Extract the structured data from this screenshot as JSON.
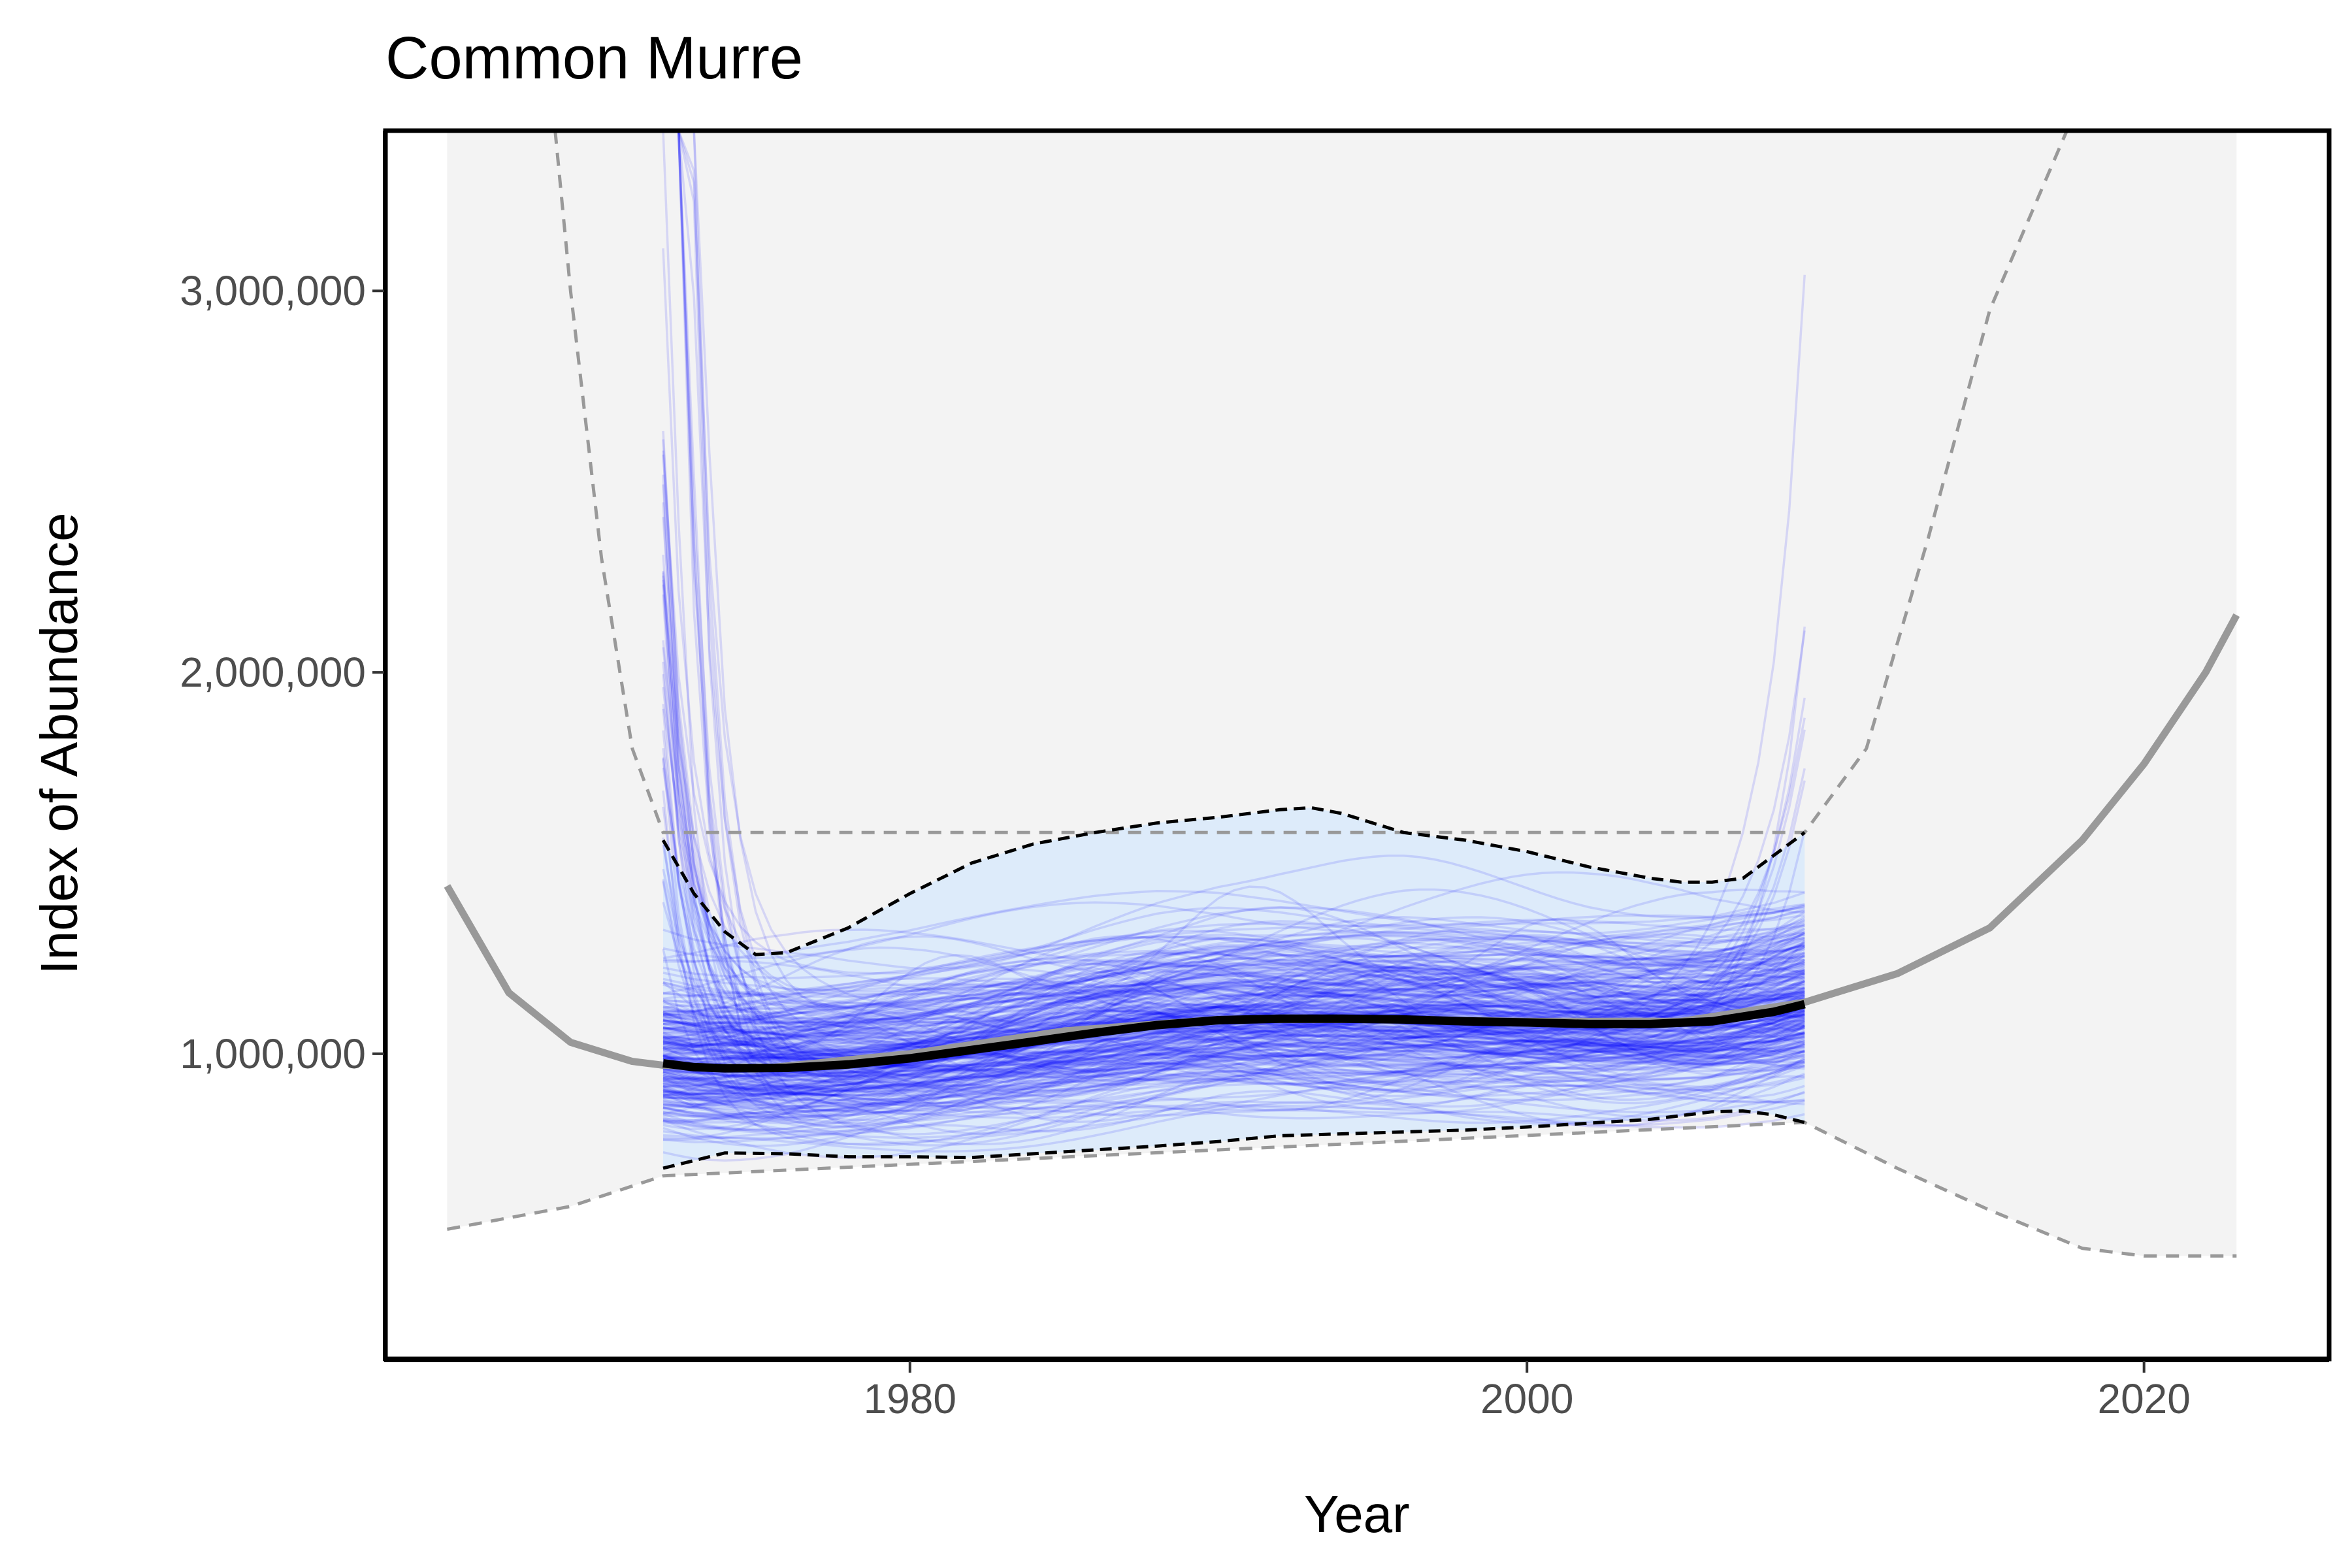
{
  "chart_data": {
    "type": "line",
    "title": "Common Murre",
    "xlabel": "Year",
    "ylabel": "Index of Abundance",
    "xlim": [
      1963,
      2026
    ],
    "ylim": [
      200000,
      3420000
    ],
    "x_ticks": [
      1980,
      2000,
      2020
    ],
    "x_tick_labels": [
      "1980",
      "2000",
      "2020"
    ],
    "y_ticks": [
      1000000,
      2000000,
      3000000
    ],
    "y_tick_labels": [
      "1,000,000",
      "2,000,000",
      "3,000,000"
    ],
    "grid": false,
    "legend": "none",
    "extrapolated_range": [
      1965,
      2023
    ],
    "observed_range": [
      1972,
      2009
    ],
    "series": [
      {
        "role": "extrapolated-trend",
        "x": [
          1965,
          1967,
          1969,
          1971,
          1972,
          1975,
          1980,
          1985,
          1990,
          1995,
          2000,
          2005,
          2009,
          2012,
          2015,
          2018,
          2020,
          2022,
          2023
        ],
        "values": [
          1440000,
          1160000,
          1030000,
          980000,
          970000,
          960000,
          1000000,
          1060000,
          1090000,
          1090000,
          1085000,
          1085000,
          1135000,
          1210000,
          1330000,
          1560000,
          1760000,
          2000000,
          2150000
        ]
      },
      {
        "role": "extrapolated-upper-bound",
        "x": [
          1968.5,
          1969,
          1970,
          1971,
          1972,
          2009,
          2011,
          2013,
          2015,
          2017.5
        ],
        "values": [
          3420000,
          3000000,
          2300000,
          1800000,
          1580000,
          1580000,
          1800000,
          2350000,
          2950000,
          3420000
        ]
      },
      {
        "role": "extrapolated-lower-bound",
        "x": [
          1965,
          1969,
          1972,
          2009,
          2012,
          2015,
          2018,
          2020,
          2023
        ],
        "values": [
          540000,
          600000,
          680000,
          820000,
          700000,
          590000,
          490000,
          470000,
          470000
        ]
      },
      {
        "role": "posterior-mean",
        "x": [
          1972,
          1973,
          1974,
          1976,
          1978,
          1980,
          1982,
          1984,
          1986,
          1988,
          1990,
          1992,
          1994,
          1996,
          1998,
          2000,
          2002,
          2004,
          2006,
          2008,
          2009
        ],
        "values": [
          975000,
          965000,
          962000,
          963000,
          972000,
          988000,
          1010000,
          1032000,
          1055000,
          1075000,
          1088000,
          1092000,
          1092000,
          1090000,
          1085000,
          1082000,
          1078000,
          1078000,
          1085000,
          1110000,
          1130000
        ]
      },
      {
        "role": "upper-credible-interval",
        "x": [
          1972,
          1973,
          1974,
          1975,
          1976,
          1978,
          1980,
          1982,
          1984,
          1986,
          1988,
          1990,
          1992,
          1993,
          1994,
          1996,
          1998,
          2000,
          2002,
          2004,
          2005,
          2006,
          2007,
          2008,
          2009
        ],
        "values": [
          1560000,
          1420000,
          1320000,
          1260000,
          1265000,
          1330000,
          1420000,
          1500000,
          1550000,
          1580000,
          1605000,
          1620000,
          1640000,
          1645000,
          1630000,
          1580000,
          1560000,
          1530000,
          1490000,
          1460000,
          1450000,
          1450000,
          1460000,
          1520000,
          1580000
        ]
      },
      {
        "role": "lower-credible-interval",
        "x": [
          1972,
          1974,
          1976,
          1978,
          1980,
          1982,
          1984,
          1986,
          1988,
          1990,
          1992,
          1994,
          1996,
          1998,
          2000,
          2002,
          2004,
          2006,
          2007,
          2008,
          2009
        ],
        "values": [
          700000,
          740000,
          738000,
          730000,
          730000,
          728000,
          738000,
          748000,
          758000,
          770000,
          785000,
          790000,
          795000,
          800000,
          808000,
          818000,
          828000,
          848000,
          850000,
          840000,
          820000
        ]
      }
    ],
    "posterior_draws": {
      "count": 300,
      "x_range": [
        1972,
        2009
      ],
      "color": "#0000ff",
      "opacity": 0.12,
      "start_value_range": [
        560000,
        3420000
      ],
      "end_value_range": [
        760000,
        2140000
      ]
    },
    "colors": {
      "draws": "#0000ff",
      "trend": "#999999",
      "ribbon": "#f3f3f3",
      "bounds": "#999999",
      "mean": "#000000",
      "credible_interval": "#000000"
    }
  }
}
